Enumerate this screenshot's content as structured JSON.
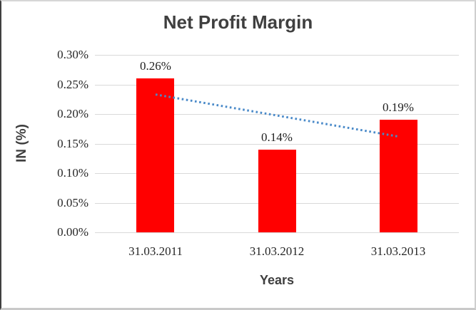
{
  "chart_data": {
    "type": "bar",
    "title": "Net Profit Margin",
    "xlabel": "Years",
    "ylabel": "IN (%)",
    "categories": [
      "31.03.2011",
      "31.03.2012",
      "31.03.2013"
    ],
    "values": [
      0.26,
      0.14,
      0.19
    ],
    "data_labels": [
      "0.26%",
      "0.14%",
      "0.19%"
    ],
    "ylim": [
      0,
      0.3
    ],
    "yticks": [
      {
        "value": 0.0,
        "label": "0.00%"
      },
      {
        "value": 0.05,
        "label": "0.05%"
      },
      {
        "value": 0.1,
        "label": "0.10%"
      },
      {
        "value": 0.15,
        "label": "0.15%"
      },
      {
        "value": 0.2,
        "label": "0.20%"
      },
      {
        "value": 0.25,
        "label": "0.25%"
      },
      {
        "value": 0.3,
        "label": "0.30%"
      }
    ],
    "grid": "horizontal",
    "legend": "none",
    "bar_color": "#ff0000",
    "gridline_color": "#d9d9d9",
    "title_color": "#3f3f3f",
    "tick_color": "#262626",
    "trendline": {
      "style": "dotted",
      "color": "#4a8ac9",
      "start_category_index": 0,
      "start_value": 0.233,
      "end_category_index": 2,
      "end_value": 0.162
    }
  }
}
